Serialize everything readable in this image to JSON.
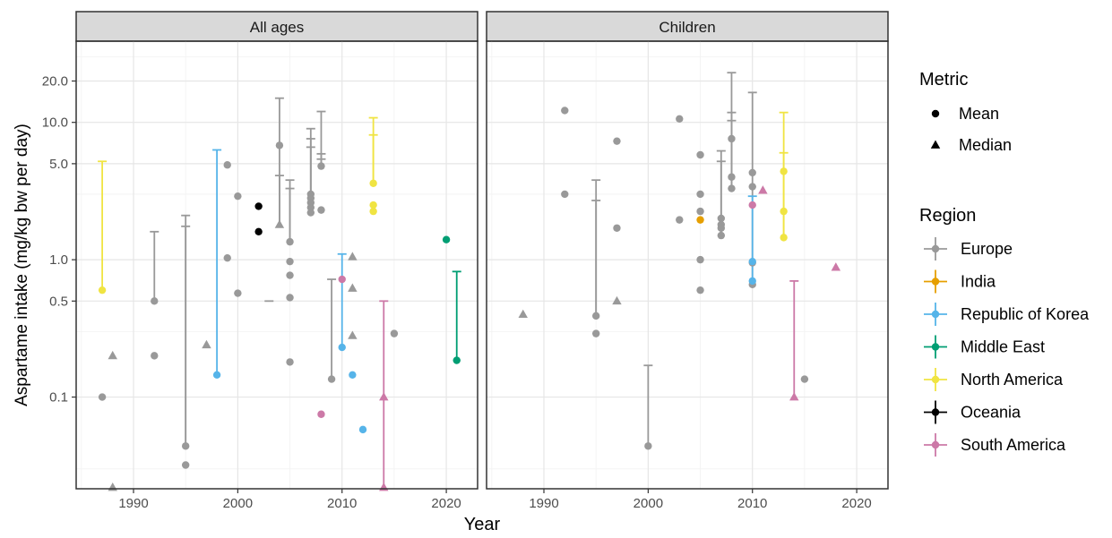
{
  "colors": {
    "Europe": "#999999",
    "India": "#E69F00",
    "Republic of Korea": "#56B4E9",
    "Middle East": "#009E73",
    "North America": "#F0E442",
    "Oceania": "#000000",
    "South America": "#CC79A7"
  },
  "chart_data": {
    "type": "scatter",
    "scale_y": "log10",
    "ylabel": "Aspartame intake (mg/kg bw per day)",
    "xlabel": "Year",
    "xlim": [
      1984.5,
      2023
    ],
    "ylim": [
      0.0215,
      39
    ],
    "x_ticks": [
      1990,
      2000,
      2010,
      2020
    ],
    "y_ticks": [
      0.1,
      0.5,
      1.0,
      5.0,
      10.0,
      20.0
    ],
    "y_tick_labels": [
      "0.1",
      "0.5",
      "1.0",
      "5.0",
      "10.0",
      "20.0"
    ],
    "grid": true,
    "legend_placement": "right",
    "legend": {
      "metric_title": "Metric",
      "metric_items": [
        {
          "label": "Mean",
          "shape": "circle"
        },
        {
          "label": "Median",
          "shape": "triangle"
        }
      ],
      "region_title": "Region",
      "region_items": [
        "Europe",
        "India",
        "Republic of Korea",
        "Middle East",
        "North America",
        "Oceania",
        "South America"
      ]
    },
    "panels": [
      {
        "title": "All ages",
        "points": [
          {
            "year": 1987,
            "value": 0.1,
            "region": "Europe",
            "metric": "Mean"
          },
          {
            "year": 1988,
            "value": 0.2,
            "region": "Europe",
            "metric": "Median"
          },
          {
            "year": 1988,
            "value": 0.022,
            "region": "Europe",
            "metric": "Median"
          },
          {
            "year": 1992,
            "value": 0.5,
            "region": "Europe",
            "metric": "Mean"
          },
          {
            "year": 1992,
            "value": 0.2,
            "region": "Europe",
            "metric": "Mean"
          },
          {
            "year": 1995,
            "value": 0.044,
            "region": "Europe",
            "metric": "Mean"
          },
          {
            "year": 1995,
            "value": 0.032,
            "region": "Europe",
            "metric": "Mean"
          },
          {
            "year": 1997,
            "value": 0.24,
            "region": "Europe",
            "metric": "Median"
          },
          {
            "year": 1999,
            "value": 4.9,
            "region": "Europe",
            "metric": "Mean"
          },
          {
            "year": 1999,
            "value": 1.03,
            "region": "Europe",
            "metric": "Mean"
          },
          {
            "year": 2000,
            "value": 2.9,
            "region": "Europe",
            "metric": "Mean"
          },
          {
            "year": 2000,
            "value": 0.57,
            "region": "Europe",
            "metric": "Mean"
          },
          {
            "year": 2004,
            "value": 6.8,
            "region": "Europe",
            "metric": "Mean"
          },
          {
            "year": 2004,
            "value": 1.8,
            "region": "Europe",
            "metric": "Median"
          },
          {
            "year": 2005,
            "value": 1.35,
            "region": "Europe",
            "metric": "Mean"
          },
          {
            "year": 2005,
            "value": 0.97,
            "region": "Europe",
            "metric": "Mean"
          },
          {
            "year": 2005,
            "value": 0.77,
            "region": "Europe",
            "metric": "Mean"
          },
          {
            "year": 2005,
            "value": 0.53,
            "region": "Europe",
            "metric": "Mean"
          },
          {
            "year": 2005,
            "value": 0.18,
            "region": "Europe",
            "metric": "Mean"
          },
          {
            "year": 2007,
            "value": 3.0,
            "region": "Europe",
            "metric": "Mean"
          },
          {
            "year": 2007,
            "value": 2.8,
            "region": "Europe",
            "metric": "Mean"
          },
          {
            "year": 2007,
            "value": 2.6,
            "region": "Europe",
            "metric": "Mean"
          },
          {
            "year": 2007,
            "value": 2.4,
            "region": "Europe",
            "metric": "Mean"
          },
          {
            "year": 2007,
            "value": 2.2,
            "region": "Europe",
            "metric": "Mean"
          },
          {
            "year": 2008,
            "value": 4.8,
            "region": "Europe",
            "metric": "Mean"
          },
          {
            "year": 2008,
            "value": 2.3,
            "region": "Europe",
            "metric": "Mean"
          },
          {
            "year": 2009,
            "value": 0.135,
            "region": "Europe",
            "metric": "Mean"
          },
          {
            "year": 2011,
            "value": 1.05,
            "region": "Europe",
            "metric": "Median"
          },
          {
            "year": 2011,
            "value": 0.62,
            "region": "Europe",
            "metric": "Median"
          },
          {
            "year": 2011,
            "value": 0.28,
            "region": "Europe",
            "metric": "Median"
          },
          {
            "year": 2015,
            "value": 0.29,
            "region": "Europe",
            "metric": "Mean"
          },
          {
            "year": 1998,
            "value": 0.145,
            "region": "Republic of Korea",
            "metric": "Mean"
          },
          {
            "year": 2010,
            "value": 0.23,
            "region": "Republic of Korea",
            "metric": "Mean"
          },
          {
            "year": 2011,
            "value": 0.145,
            "region": "Republic of Korea",
            "metric": "Mean"
          },
          {
            "year": 2012,
            "value": 0.058,
            "region": "Republic of Korea",
            "metric": "Mean"
          },
          {
            "year": 2020,
            "value": 1.4,
            "region": "Middle East",
            "metric": "Mean"
          },
          {
            "year": 2021,
            "value": 0.185,
            "region": "Middle East",
            "metric": "Mean"
          },
          {
            "year": 1987,
            "value": 0.6,
            "region": "North America",
            "metric": "Mean"
          },
          {
            "year": 2013,
            "value": 3.6,
            "region": "North America",
            "metric": "Mean"
          },
          {
            "year": 2013,
            "value": 2.5,
            "region": "North America",
            "metric": "Mean"
          },
          {
            "year": 2013,
            "value": 2.25,
            "region": "North America",
            "metric": "Mean"
          },
          {
            "year": 2002,
            "value": 2.45,
            "region": "Oceania",
            "metric": "Mean"
          },
          {
            "year": 2002,
            "value": 1.6,
            "region": "Oceania",
            "metric": "Mean"
          },
          {
            "year": 2008,
            "value": 0.075,
            "region": "South America",
            "metric": "Mean"
          },
          {
            "year": 2010,
            "value": 0.72,
            "region": "South America",
            "metric": "Mean"
          },
          {
            "year": 2014,
            "value": 0.1,
            "region": "South America",
            "metric": "Median"
          },
          {
            "year": 2014,
            "value": 0.022,
            "region": "South America",
            "metric": "Median"
          }
        ],
        "errorbars": [
          {
            "year": 1987,
            "low": 0.6,
            "high": 5.2,
            "region": "North America"
          },
          {
            "year": 1992,
            "low": 0.5,
            "high": 1.6,
            "region": "Europe"
          },
          {
            "year": 1995,
            "low": 0.044,
            "high": 2.1,
            "region": "Europe"
          },
          {
            "year": 1995,
            "low": 0.044,
            "high": 1.75,
            "region": "Europe"
          },
          {
            "year": 1998,
            "low": 0.145,
            "high": 6.3,
            "region": "Republic of Korea"
          },
          {
            "year": 2003,
            "low": 0.5,
            "high": 0.5,
            "region": "Europe"
          },
          {
            "year": 2004,
            "low": 1.8,
            "high": 15,
            "region": "Europe"
          },
          {
            "year": 2004,
            "low": 1.8,
            "high": 4.1,
            "region": "Europe"
          },
          {
            "year": 2005,
            "low": 1.35,
            "high": 3.8,
            "region": "Europe"
          },
          {
            "year": 2005,
            "low": 1.35,
            "high": 3.3,
            "region": "Europe"
          },
          {
            "year": 2007,
            "low": 3.0,
            "high": 9.0,
            "region": "Europe"
          },
          {
            "year": 2007,
            "low": 3.0,
            "high": 7.6,
            "region": "Europe"
          },
          {
            "year": 2007,
            "low": 3.0,
            "high": 6.6,
            "region": "Europe"
          },
          {
            "year": 2008,
            "low": 4.8,
            "high": 12,
            "region": "Europe"
          },
          {
            "year": 2008,
            "low": 4.8,
            "high": 5.9,
            "region": "Europe"
          },
          {
            "year": 2008,
            "low": 4.8,
            "high": 5.4,
            "region": "Europe"
          },
          {
            "year": 2009,
            "low": 0.135,
            "high": 0.72,
            "region": "Europe"
          },
          {
            "year": 2010,
            "low": 0.23,
            "high": 1.1,
            "region": "Republic of Korea"
          },
          {
            "year": 2013,
            "low": 3.6,
            "high": 10.8,
            "region": "North America"
          },
          {
            "year": 2013,
            "low": 3.6,
            "high": 8.1,
            "region": "North America"
          },
          {
            "year": 2014,
            "low": 0.022,
            "high": 0.5,
            "region": "South America"
          },
          {
            "year": 2021,
            "low": 0.185,
            "high": 0.82,
            "region": "Middle East"
          }
        ]
      },
      {
        "title": "Children",
        "points": [
          {
            "year": 1988,
            "value": 0.4,
            "region": "Europe",
            "metric": "Median"
          },
          {
            "year": 1992,
            "value": 12.2,
            "region": "Europe",
            "metric": "Mean"
          },
          {
            "year": 1992,
            "value": 3.0,
            "region": "Europe",
            "metric": "Mean"
          },
          {
            "year": 1995,
            "value": 0.39,
            "region": "Europe",
            "metric": "Mean"
          },
          {
            "year": 1995,
            "value": 0.29,
            "region": "Europe",
            "metric": "Mean"
          },
          {
            "year": 1997,
            "value": 7.3,
            "region": "Europe",
            "metric": "Mean"
          },
          {
            "year": 1997,
            "value": 1.7,
            "region": "Europe",
            "metric": "Mean"
          },
          {
            "year": 1997,
            "value": 0.5,
            "region": "Europe",
            "metric": "Median"
          },
          {
            "year": 2000,
            "value": 0.044,
            "region": "Europe",
            "metric": "Mean"
          },
          {
            "year": 2003,
            "value": 10.6,
            "region": "Europe",
            "metric": "Mean"
          },
          {
            "year": 2003,
            "value": 1.95,
            "region": "Europe",
            "metric": "Mean"
          },
          {
            "year": 2005,
            "value": 5.8,
            "region": "Europe",
            "metric": "Mean"
          },
          {
            "year": 2005,
            "value": 3.0,
            "region": "Europe",
            "metric": "Mean"
          },
          {
            "year": 2005,
            "value": 2.25,
            "region": "Europe",
            "metric": "Mean"
          },
          {
            "year": 2005,
            "value": 1.0,
            "region": "Europe",
            "metric": "Mean"
          },
          {
            "year": 2005,
            "value": 0.6,
            "region": "Europe",
            "metric": "Mean"
          },
          {
            "year": 2007,
            "value": 2.0,
            "region": "Europe",
            "metric": "Mean"
          },
          {
            "year": 2007,
            "value": 1.8,
            "region": "Europe",
            "metric": "Mean"
          },
          {
            "year": 2007,
            "value": 1.7,
            "region": "Europe",
            "metric": "Mean"
          },
          {
            "year": 2007,
            "value": 1.5,
            "region": "Europe",
            "metric": "Mean"
          },
          {
            "year": 2008,
            "value": 7.6,
            "region": "Europe",
            "metric": "Mean"
          },
          {
            "year": 2008,
            "value": 4.0,
            "region": "Europe",
            "metric": "Mean"
          },
          {
            "year": 2008,
            "value": 3.3,
            "region": "Europe",
            "metric": "Mean"
          },
          {
            "year": 2010,
            "value": 4.3,
            "region": "Europe",
            "metric": "Mean"
          },
          {
            "year": 2010,
            "value": 3.4,
            "region": "Europe",
            "metric": "Mean"
          },
          {
            "year": 2010,
            "value": 0.95,
            "region": "Europe",
            "metric": "Mean"
          },
          {
            "year": 2010,
            "value": 0.66,
            "region": "Europe",
            "metric": "Mean"
          },
          {
            "year": 2015,
            "value": 0.135,
            "region": "Europe",
            "metric": "Mean"
          },
          {
            "year": 2005,
            "value": 1.95,
            "region": "India",
            "metric": "Mean"
          },
          {
            "year": 2010,
            "value": 0.97,
            "region": "Republic of Korea",
            "metric": "Mean"
          },
          {
            "year": 2010,
            "value": 0.7,
            "region": "Republic of Korea",
            "metric": "Mean"
          },
          {
            "year": 2013,
            "value": 4.4,
            "region": "North America",
            "metric": "Mean"
          },
          {
            "year": 2013,
            "value": 2.25,
            "region": "North America",
            "metric": "Mean"
          },
          {
            "year": 2013,
            "value": 1.45,
            "region": "North America",
            "metric": "Mean"
          },
          {
            "year": 2010,
            "value": 2.5,
            "region": "South America",
            "metric": "Mean"
          },
          {
            "year": 2011,
            "value": 3.2,
            "region": "South America",
            "metric": "Median"
          },
          {
            "year": 2014,
            "value": 0.1,
            "region": "South America",
            "metric": "Median"
          },
          {
            "year": 2018,
            "value": 0.88,
            "region": "South America",
            "metric": "Median"
          }
        ],
        "errorbars": [
          {
            "year": 1995,
            "low": 0.39,
            "high": 3.8,
            "region": "Europe"
          },
          {
            "year": 1995,
            "low": 0.39,
            "high": 2.7,
            "region": "Europe"
          },
          {
            "year": 2000,
            "low": 0.044,
            "high": 0.17,
            "region": "Europe"
          },
          {
            "year": 2007,
            "low": 1.5,
            "high": 6.2,
            "region": "Europe"
          },
          {
            "year": 2007,
            "low": 1.5,
            "high": 5.2,
            "region": "Europe"
          },
          {
            "year": 2008,
            "low": 3.3,
            "high": 23,
            "region": "Europe"
          },
          {
            "year": 2008,
            "low": 3.3,
            "high": 11.8,
            "region": "Europe"
          },
          {
            "year": 2008,
            "low": 3.3,
            "high": 10.3,
            "region": "Europe"
          },
          {
            "year": 2010,
            "low": 0.66,
            "high": 16.5,
            "region": "Europe"
          },
          {
            "year": 2010,
            "low": 0.66,
            "high": 2.9,
            "region": "Republic of Korea"
          },
          {
            "year": 2013,
            "low": 1.45,
            "high": 11.8,
            "region": "North America"
          },
          {
            "year": 2013,
            "low": 1.45,
            "high": 6.0,
            "region": "North America"
          },
          {
            "year": 2014,
            "low": 0.1,
            "high": 0.7,
            "region": "South America"
          }
        ]
      }
    ]
  }
}
